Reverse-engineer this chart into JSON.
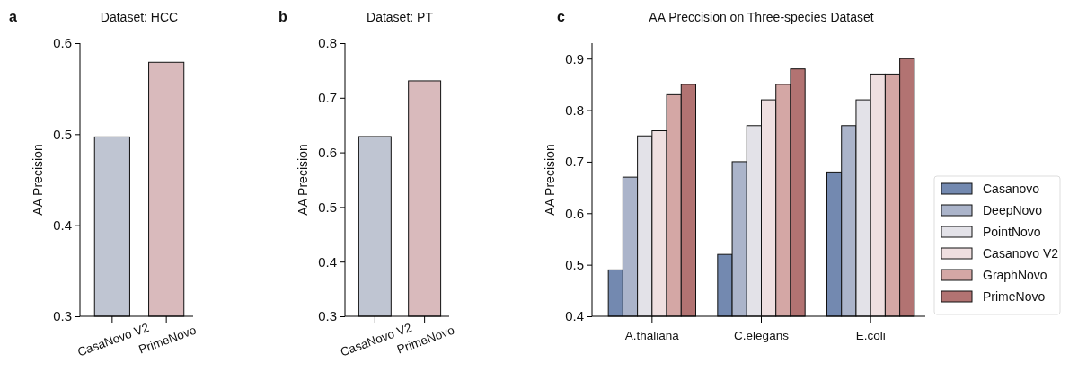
{
  "chart_data": [
    {
      "type": "bar",
      "title": "Dataset: HCC",
      "ylabel": "AA Precision",
      "annotations": [
        "a"
      ],
      "categories": [
        "CasaNovo V2",
        "PrimeNovo"
      ],
      "values": [
        0.497,
        0.579
      ],
      "colors": [
        "#bfc5d2",
        "#d9babc"
      ],
      "ylim": [
        0.3,
        0.6
      ],
      "yticks": [
        0.3,
        0.4,
        0.5,
        0.6
      ],
      "grid": false,
      "legend": false
    },
    {
      "type": "bar",
      "title": "Dataset: PT",
      "ylabel": "AA Precision",
      "annotations": [
        "b"
      ],
      "categories": [
        "CasaNovo V2",
        "PrimeNovo"
      ],
      "values": [
        0.629,
        0.731
      ],
      "colors": [
        "#bfc5d2",
        "#d9babc"
      ],
      "ylim": [
        0.3,
        0.8
      ],
      "yticks": [
        0.3,
        0.4,
        0.5,
        0.6,
        0.7,
        0.8
      ],
      "grid": false,
      "legend": false
    },
    {
      "type": "bar",
      "title": "AA Preccision on Three-species Dataset",
      "ylabel": "AA Precision",
      "annotations": [
        "c"
      ],
      "categories": [
        "A.thaliana",
        "C.elegans",
        "E.coli"
      ],
      "ylim": [
        0.4,
        0.93
      ],
      "yticks": [
        0.4,
        0.5,
        0.6,
        0.7,
        0.8,
        0.9
      ],
      "grid": false,
      "legend": "right",
      "series": [
        {
          "name": "Casanovo",
          "color": "#7389b0",
          "values": [
            0.49,
            0.52,
            0.68
          ]
        },
        {
          "name": "DeepNovo",
          "color": "#abb4ca",
          "values": [
            0.67,
            0.7,
            0.77
          ]
        },
        {
          "name": "PointNovo",
          "color": "#e3e2e8",
          "values": [
            0.75,
            0.77,
            0.82
          ]
        },
        {
          "name": "Casanovo V2",
          "color": "#efdfe0",
          "values": [
            0.76,
            0.82,
            0.87
          ]
        },
        {
          "name": "GraphNovo",
          "color": "#d4a7a5",
          "values": [
            0.83,
            0.85,
            0.87
          ]
        },
        {
          "name": "PrimeNovo",
          "color": "#b27372",
          "values": [
            0.85,
            0.88,
            0.9
          ]
        }
      ]
    }
  ]
}
